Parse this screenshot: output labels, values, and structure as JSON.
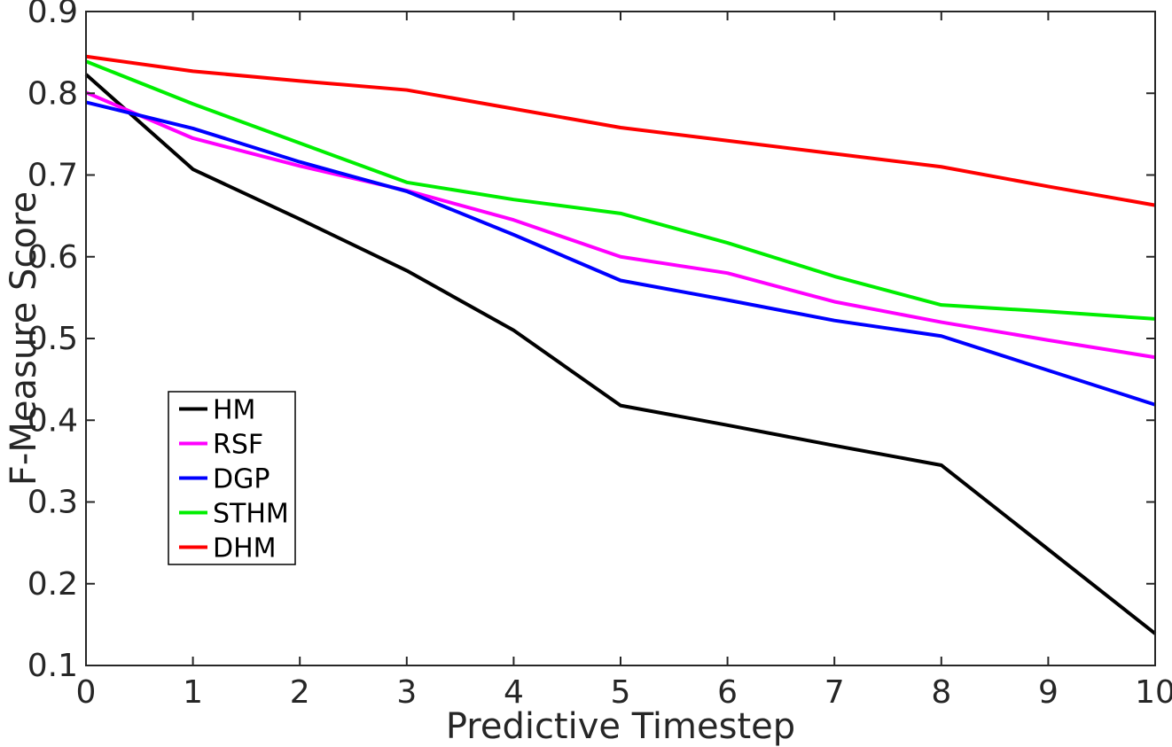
{
  "figure": {
    "background": "#ffffff",
    "axis_color": "#262626",
    "tick_label_color": "#262626",
    "legend_text_color": "#000000",
    "legend_border_color": "#000000"
  },
  "chart_data": {
    "type": "line",
    "title": "",
    "xlabel": "Predictive Timestep",
    "ylabel": "F-Measure Score",
    "x": [
      0,
      1,
      2,
      3,
      4,
      5,
      6,
      7,
      8,
      9,
      10
    ],
    "xlim": [
      0,
      10
    ],
    "ylim": [
      0.1,
      0.9
    ],
    "xticks": [
      0,
      1,
      2,
      3,
      4,
      5,
      6,
      7,
      8,
      9,
      10
    ],
    "yticks": [
      0.1,
      0.2,
      0.3,
      0.4,
      0.5,
      0.6,
      0.7,
      0.8,
      0.9
    ],
    "grid": false,
    "box": true,
    "tick_direction": "in",
    "legend_position": "inside-left-middle",
    "series": [
      {
        "name": "HM",
        "color": "#000000",
        "values": [
          0.823,
          0.707,
          0.646,
          0.583,
          0.51,
          0.418,
          0.394,
          0.369,
          0.345,
          0.242,
          0.139
        ]
      },
      {
        "name": "RSF",
        "color": "#ff00ff",
        "values": [
          0.801,
          0.745,
          0.711,
          0.681,
          0.645,
          0.6,
          0.58,
          0.545,
          0.52,
          0.498,
          0.477
        ]
      },
      {
        "name": "DGP",
        "color": "#0000ff",
        "values": [
          0.789,
          0.757,
          0.716,
          0.68,
          0.627,
          0.571,
          0.547,
          0.522,
          0.503,
          0.461,
          0.419
        ]
      },
      {
        "name": "STHM",
        "color": "#00ee00",
        "values": [
          0.839,
          0.787,
          0.739,
          0.691,
          0.67,
          0.653,
          0.617,
          0.576,
          0.541,
          0.533,
          0.524
        ]
      },
      {
        "name": "DHM",
        "color": "#ff0000",
        "values": [
          0.845,
          0.827,
          0.815,
          0.804,
          0.781,
          0.758,
          0.742,
          0.726,
          0.71,
          0.686,
          0.663
        ]
      }
    ]
  }
}
